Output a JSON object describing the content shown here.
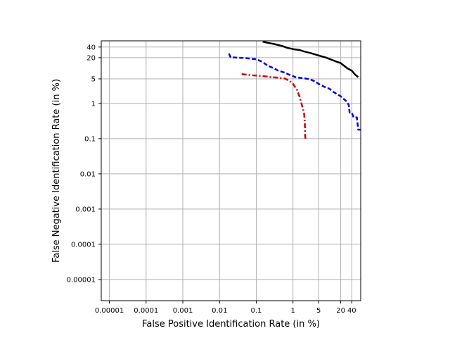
{
  "chart_data": {
    "type": "line",
    "title": "",
    "xlabel": "False Positive Identification Rate (in %)",
    "ylabel": "False Negative Identification Rate (in %)",
    "xscale": "log",
    "yscale": "log",
    "xlim": [
      6e-06,
      70
    ],
    "ylim": [
      2.5e-06,
      60
    ],
    "xticks": [
      {
        "value": 1e-05,
        "label": "0.00001"
      },
      {
        "value": 0.0001,
        "label": "0.0001"
      },
      {
        "value": 0.001,
        "label": "0.001"
      },
      {
        "value": 0.01,
        "label": "0.01"
      },
      {
        "value": 0.1,
        "label": "0.1"
      },
      {
        "value": 1,
        "label": "1"
      },
      {
        "value": 5,
        "label": "5"
      },
      {
        "value": 20,
        "label": "20"
      },
      {
        "value": 40,
        "label": "40"
      }
    ],
    "yticks": [
      {
        "value": 1e-05,
        "label": "0.00001"
      },
      {
        "value": 0.0001,
        "label": "0.0001"
      },
      {
        "value": 0.001,
        "label": "0.001"
      },
      {
        "value": 0.01,
        "label": "0.01"
      },
      {
        "value": 0.1,
        "label": "0.1"
      },
      {
        "value": 1,
        "label": "1"
      },
      {
        "value": 5,
        "label": "5"
      },
      {
        "value": 20,
        "label": "20"
      },
      {
        "value": 40,
        "label": "40"
      }
    ],
    "grid": true,
    "legend": "none",
    "series": [
      {
        "color": "#000000",
        "style": "solid",
        "points": [
          [
            0.15,
            57
          ],
          [
            0.2,
            53
          ],
          [
            0.3,
            49
          ],
          [
            0.5,
            43
          ],
          [
            0.7,
            38
          ],
          [
            1,
            35
          ],
          [
            1.5,
            33
          ],
          [
            2,
            30
          ],
          [
            3,
            27
          ],
          [
            5,
            23
          ],
          [
            8,
            20
          ],
          [
            12,
            17
          ],
          [
            15,
            15.5
          ],
          [
            20,
            14
          ],
          [
            30,
            10
          ],
          [
            40,
            8.5
          ],
          [
            50,
            6.5
          ],
          [
            60,
            5.6
          ]
        ]
      },
      {
        "color": "#0000dd",
        "style": "dashed",
        "points": [
          [
            0.018,
            26
          ],
          [
            0.02,
            20.5
          ],
          [
            0.03,
            20
          ],
          [
            0.05,
            19.5
          ],
          [
            0.1,
            18
          ],
          [
            0.15,
            15
          ],
          [
            0.2,
            12
          ],
          [
            0.3,
            10
          ],
          [
            0.4,
            8.5
          ],
          [
            0.6,
            7.5
          ],
          [
            0.8,
            6.5
          ],
          [
            1,
            6
          ],
          [
            1.2,
            5.5
          ],
          [
            2,
            5.2
          ],
          [
            3,
            4.8
          ],
          [
            4,
            4.2
          ],
          [
            5,
            3.6
          ],
          [
            7,
            3
          ],
          [
            10,
            2.6
          ],
          [
            12,
            2.2
          ],
          [
            15,
            1.9
          ],
          [
            20,
            1.6
          ],
          [
            25,
            1.3
          ],
          [
            30,
            1.1
          ],
          [
            33,
            0.9
          ],
          [
            35,
            0.55
          ],
          [
            40,
            0.55
          ],
          [
            45,
            0.4
          ],
          [
            55,
            0.4
          ],
          [
            60,
            0.18
          ],
          [
            75,
            0.18
          ]
        ]
      },
      {
        "color": "#cc0000",
        "style": "dashdot",
        "points": [
          [
            0.04,
            6.8
          ],
          [
            0.08,
            6.3
          ],
          [
            0.15,
            6
          ],
          [
            0.25,
            5.6
          ],
          [
            0.4,
            5.4
          ],
          [
            0.6,
            5.1
          ],
          [
            0.8,
            4.4
          ],
          [
            1,
            3.6
          ],
          [
            1.3,
            2.4
          ],
          [
            1.5,
            1.6
          ],
          [
            1.7,
            1
          ],
          [
            2,
            0.55
          ],
          [
            2.1,
            0.3
          ],
          [
            2.15,
            0.12
          ],
          [
            2.2,
            0.1
          ]
        ]
      }
    ]
  }
}
